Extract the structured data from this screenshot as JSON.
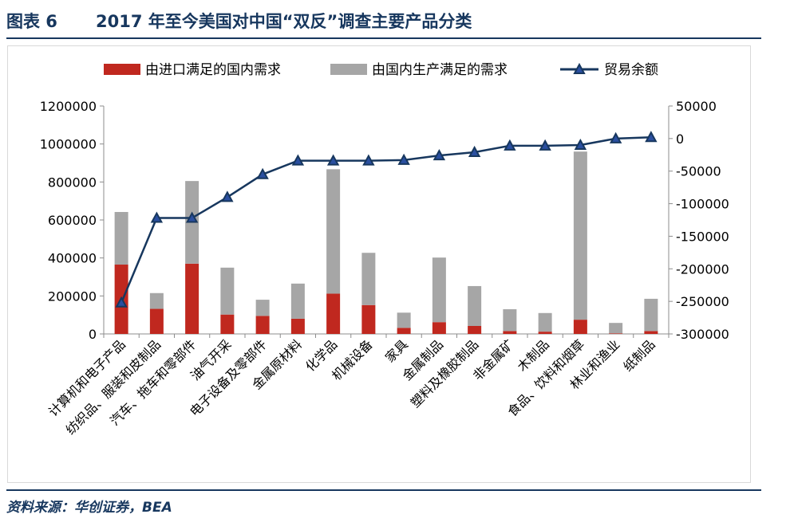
{
  "header": {
    "figure_label": "图表 6",
    "title": "2017 年至今美国对中国“双反”调查主要产品分类"
  },
  "source": "资料来源：华创证券，BEA",
  "colors": {
    "import": "#c0281f",
    "domestic": "#a6a6a6",
    "balance": "#17375e",
    "marker": "#2a4fa0",
    "title": "#17375e"
  },
  "chart_data": {
    "type": "bar",
    "stacked": true,
    "categories": [
      "计算机和电子产品",
      "纺织品、服装和皮制品",
      "汽车、拖车和零部件",
      "油气开采",
      "电子设备及零部件",
      "金属原材料",
      "化学品",
      "机械设备",
      "家具",
      "金属制品",
      "塑料及橡胶制品",
      "非金属矿",
      "木制品",
      "食品、饮料和烟草",
      "林业和渔业",
      "纸制品"
    ],
    "series": [
      {
        "name": "由进口满足的国内需求",
        "axis": "left",
        "values": [
          365000,
          132000,
          370000,
          102000,
          95000,
          80000,
          212000,
          152000,
          32000,
          62000,
          42000,
          15000,
          12000,
          75000,
          3000,
          15000
        ]
      },
      {
        "name": "由国内生产满足的需求",
        "axis": "left",
        "values": [
          277000,
          83000,
          435000,
          247000,
          85000,
          185000,
          655000,
          275000,
          80000,
          340000,
          210000,
          115000,
          98000,
          885000,
          55000,
          170000
        ]
      },
      {
        "name": "贸易余额",
        "axis": "right",
        "type": "line",
        "values": [
          -252000,
          -122000,
          -122000,
          -90000,
          -55000,
          -34000,
          -34000,
          -34000,
          -33000,
          -26000,
          -21000,
          -11000,
          -11000,
          -10000,
          0,
          2000
        ]
      }
    ],
    "left_axis": {
      "min": 0,
      "max": 1200000,
      "ticks": [
        "0",
        "200000",
        "400000",
        "600000",
        "800000",
        "1000000",
        "1200000"
      ]
    },
    "right_axis": {
      "min": -300000,
      "max": 50000,
      "ticks": [
        "-300000",
        "-250000",
        "-200000",
        "-150000",
        "-100000",
        "-50000",
        "0",
        "50000"
      ]
    },
    "legend": [
      "由进口满足的国内需求",
      "由国内生产满足的需求",
      "贸易余额"
    ],
    "legend_position": "top"
  }
}
